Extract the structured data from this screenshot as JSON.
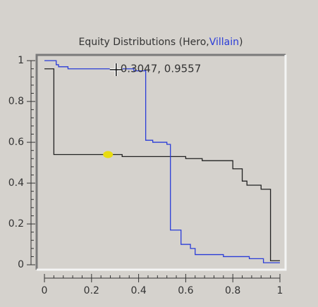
{
  "chart_data": {
    "type": "step",
    "title": "Equity Distributions (Hero,Villain)",
    "annotation": "0.3047, 0.9557",
    "xlim": [
      -0.033,
      1.024
    ],
    "ylim": [
      -0.024,
      1.028
    ],
    "xticks": [
      0,
      0.2,
      0.4,
      0.6,
      0.8,
      1
    ],
    "yticks": [
      0,
      0.2,
      0.4,
      0.6,
      0.8,
      1
    ],
    "marker": {
      "x": 0.27,
      "y": 0.54,
      "color": "#e8dc10"
    },
    "cursor": {
      "x": 0.3047,
      "y": 0.9557
    },
    "series": [
      {
        "name": "Hero",
        "color": "#222222",
        "x": [
          0,
          0.04,
          0.33,
          0.6,
          0.67,
          0.8,
          0.84,
          0.86,
          0.92,
          0.96,
          1
        ],
        "values": [
          0.96,
          0.54,
          0.53,
          0.52,
          0.51,
          0.47,
          0.41,
          0.39,
          0.37,
          0.02,
          0.02
        ]
      },
      {
        "name": "Villain",
        "color": "#2a3cd8",
        "x": [
          0,
          0.05,
          0.06,
          0.1,
          0.38,
          0.43,
          0.46,
          0.52,
          0.535,
          0.58,
          0.62,
          0.64,
          0.76,
          0.87,
          0.93,
          1
        ],
        "values": [
          1,
          0.98,
          0.97,
          0.96,
          0.95,
          0.61,
          0.6,
          0.59,
          0.17,
          0.1,
          0.08,
          0.05,
          0.04,
          0.03,
          0.01,
          0.01
        ]
      }
    ]
  }
}
